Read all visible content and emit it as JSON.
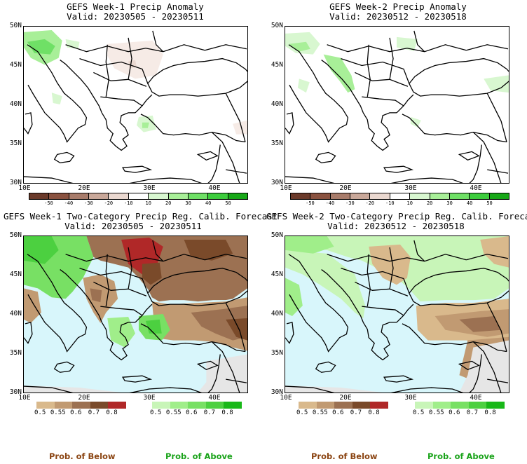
{
  "panels": {
    "p1": {
      "title": "GEFS Week-1 Precip Anomaly",
      "valid": "Valid: 20230505 - 20230511"
    },
    "p2": {
      "title": "GEFS Week-2 Precip Anomaly",
      "valid": "Valid: 20230512 - 20230518"
    },
    "p3": {
      "title": "GEFS Week-1 Two-Category Precip Reg. Calib. Forecast",
      "valid": "Valid: 20230505 - 20230511"
    },
    "p4": {
      "title": "GEFS Week-2 Two-Category Precip Reg. Calib. Forecast",
      "valid": "Valid: 20230512 - 20230518"
    }
  },
  "axes": {
    "lat": [
      "50N",
      "45N",
      "40N",
      "35N",
      "30N"
    ],
    "lon": [
      "10E",
      "20E",
      "30E",
      "40E"
    ]
  },
  "anomaly_colorbar": {
    "ticks": [
      "-50",
      "-40",
      "-30",
      "-20",
      "-10",
      "10",
      "20",
      "30",
      "40",
      "50"
    ],
    "colors": [
      "#6b3a2a",
      "#8a5240",
      "#a87c6b",
      "#c9a89a",
      "#ead8d0",
      "#ffffff",
      "#d8f7d0",
      "#a8ef98",
      "#6fe066",
      "#3ccc3c",
      "#17a817"
    ]
  },
  "prob_colorbars": {
    "below": {
      "ticks": [
        "0.5",
        "0.55",
        "0.6",
        "0.7",
        "0.8"
      ],
      "colors": [
        "#d9b98c",
        "#c19a72",
        "#9c7152",
        "#7a4a2a",
        "#b02828"
      ]
    },
    "above": {
      "ticks": [
        "0.5",
        "0.55",
        "0.6",
        "0.7",
        "0.8"
      ],
      "colors": [
        "#c8f5b8",
        "#a0ee8a",
        "#78e064",
        "#4cd040",
        "#18b818"
      ]
    }
  },
  "footer": {
    "below": "Prob. of Below",
    "above": "Prob. of Above"
  },
  "colors": {
    "below_label": "#8b4513",
    "above_label": "#1aa31a",
    "sea": "#d8f6fb",
    "land_gray": "#e6e6e6"
  }
}
